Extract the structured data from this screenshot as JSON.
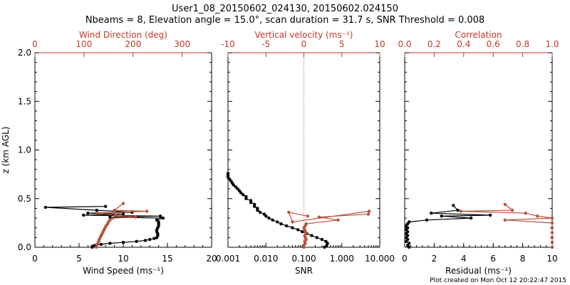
{
  "title_line1": "User1_08_20150602_024130, 20150602.024150",
  "title_line2": "Nbeams = 8, Elevation angle = 15.0°, scan duration = 31.7 s, SNR Threshold = 0.008",
  "footer": "Plot created on Mon Oct 12 20:22:47 2015",
  "colors": {
    "black": "#000000",
    "red": "#c0392b",
    "brown": "#b5533c"
  },
  "chart_data": [
    {
      "type": "scatter",
      "name": "panel-wind",
      "ylabel": "z (km AGL)",
      "ylim": [
        0,
        2
      ],
      "yticks": [
        "0.0",
        "0.5",
        "1.0",
        "1.5",
        "2.0"
      ],
      "xlabel": "Wind Speed (ms⁻¹)",
      "xlim": [
        0,
        20
      ],
      "xticks": [
        "0",
        "5",
        "10",
        "15",
        "20"
      ],
      "top_xlabel": "Wind Direction (deg)",
      "top_xlim": [
        0,
        360
      ],
      "top_xticks": [
        "0",
        "100",
        "200",
        "300"
      ],
      "series": [
        {
          "axis": "bottom",
          "color": "black",
          "points": [
            [
              6.5,
              0.0
            ],
            [
              6.5,
              0.01
            ],
            [
              6.8,
              0.02
            ],
            [
              7.5,
              0.03
            ],
            [
              8.5,
              0.04
            ],
            [
              10,
              0.05
            ],
            [
              11.5,
              0.06
            ],
            [
              12.5,
              0.07
            ],
            [
              13,
              0.08
            ],
            [
              13.5,
              0.09
            ],
            [
              13.8,
              0.1
            ],
            [
              13.9,
              0.12
            ],
            [
              13.9,
              0.14
            ],
            [
              13.8,
              0.16
            ],
            [
              13.8,
              0.18
            ],
            [
              13.9,
              0.2
            ],
            [
              14,
              0.22
            ],
            [
              14,
              0.24
            ],
            [
              14,
              0.26
            ],
            [
              13.8,
              0.28
            ],
            [
              14.5,
              0.3
            ],
            [
              8.5,
              0.31
            ],
            [
              14.2,
              0.32
            ],
            [
              5.5,
              0.33
            ],
            [
              10,
              0.34
            ],
            [
              6,
              0.35
            ],
            [
              11,
              0.36
            ],
            [
              7,
              0.38
            ],
            [
              1.2,
              0.41
            ],
            [
              8,
              0.42
            ]
          ]
        },
        {
          "axis": "top",
          "color": "brown",
          "points": [
            [
              125,
              0.0
            ],
            [
              126,
              0.02
            ],
            [
              128,
              0.04
            ],
            [
              130,
              0.06
            ],
            [
              131,
              0.08
            ],
            [
              133,
              0.1
            ],
            [
              135,
              0.12
            ],
            [
              137,
              0.14
            ],
            [
              139,
              0.16
            ],
            [
              141,
              0.18
            ],
            [
              143,
              0.2
            ],
            [
              145,
              0.22
            ],
            [
              148,
              0.24
            ],
            [
              150,
              0.26
            ],
            [
              153,
              0.28
            ],
            [
              158,
              0.3
            ],
            [
              205,
              0.31
            ],
            [
              165,
              0.33
            ],
            [
              128,
              0.35
            ],
            [
              228,
              0.37
            ],
            [
              162,
              0.38
            ],
            [
              180,
              0.45
            ]
          ]
        }
      ]
    },
    {
      "type": "scatter",
      "name": "panel-snr",
      "xlabel": "SNR",
      "xscale": "log",
      "xlim": [
        0.001,
        10
      ],
      "xticks": [
        "0.001",
        "0.010",
        "0.100",
        "1.000",
        "10.000"
      ],
      "top_xlabel": "Vertical velocity (ms⁻¹)",
      "top_xlim": [
        -10,
        10
      ],
      "top_xticks": [
        "-10",
        "-5",
        "0",
        "5",
        "10"
      ],
      "ylim": [
        0,
        2
      ],
      "zero_line": 0,
      "series": [
        {
          "axis": "bottom",
          "color": "black",
          "points": [
            [
              0.35,
              0.0
            ],
            [
              0.4,
              0.02
            ],
            [
              0.42,
              0.04
            ],
            [
              0.38,
              0.06
            ],
            [
              0.3,
              0.08
            ],
            [
              0.22,
              0.1
            ],
            [
              0.16,
              0.12
            ],
            [
              0.12,
              0.14
            ],
            [
              0.09,
              0.16
            ],
            [
              0.07,
              0.18
            ],
            [
              0.05,
              0.2
            ],
            [
              0.035,
              0.22
            ],
            [
              0.025,
              0.24
            ],
            [
              0.02,
              0.26
            ],
            [
              0.015,
              0.28
            ],
            [
              0.012,
              0.3
            ],
            [
              0.01,
              0.32
            ],
            [
              0.009,
              0.34
            ],
            [
              0.007,
              0.36
            ],
            [
              0.006,
              0.38
            ],
            [
              0.006,
              0.4
            ],
            [
              0.005,
              0.42
            ],
            [
              0.005,
              0.44
            ],
            [
              0.004,
              0.46
            ],
            [
              0.004,
              0.48
            ],
            [
              0.003,
              0.5
            ],
            [
              0.003,
              0.52
            ],
            [
              0.0025,
              0.54
            ],
            [
              0.0022,
              0.56
            ],
            [
              0.002,
              0.58
            ],
            [
              0.0018,
              0.6
            ],
            [
              0.0016,
              0.62
            ],
            [
              0.0014,
              0.64
            ],
            [
              0.0013,
              0.66
            ],
            [
              0.0012,
              0.68
            ],
            [
              0.0011,
              0.7
            ],
            [
              0.001,
              0.72
            ],
            [
              0.001,
              0.74
            ],
            [
              0.001,
              0.76
            ]
          ]
        },
        {
          "axis": "top",
          "color": "brown",
          "points": [
            [
              0,
              0.0
            ],
            [
              0,
              0.02
            ],
            [
              0.2,
              0.04
            ],
            [
              0.1,
              0.06
            ],
            [
              0.3,
              0.08
            ],
            [
              0.2,
              0.1
            ],
            [
              0.1,
              0.12
            ],
            [
              0.3,
              0.14
            ],
            [
              0.2,
              0.16
            ],
            [
              0.1,
              0.18
            ],
            [
              0,
              0.2
            ],
            [
              0.2,
              0.22
            ],
            [
              0.3,
              0.24
            ],
            [
              4.5,
              0.28
            ],
            [
              2,
              0.31
            ],
            [
              8.5,
              0.34
            ],
            [
              8.6,
              0.37
            ],
            [
              -1.5,
              0.26
            ],
            [
              -2,
              0.36
            ],
            [
              0.5,
              0.32
            ]
          ]
        }
      ]
    },
    {
      "type": "scatter",
      "name": "panel-residual",
      "xlabel": "Residual (ms⁻¹)",
      "xlim": [
        0,
        10
      ],
      "xticks": [
        "0",
        "2",
        "4",
        "6",
        "8",
        "10"
      ],
      "top_xlabel": "Correlation",
      "top_xlim": [
        0,
        1
      ],
      "top_xticks": [
        "0.0",
        "0.2",
        "0.4",
        "0.6",
        "0.8",
        "1.0"
      ],
      "ylim": [
        0,
        2
      ],
      "series": [
        {
          "axis": "bottom",
          "color": "black",
          "points": [
            [
              0.3,
              0.0
            ],
            [
              0.2,
              0.02
            ],
            [
              0.3,
              0.04
            ],
            [
              0.1,
              0.06
            ],
            [
              0.2,
              0.08
            ],
            [
              0.1,
              0.1
            ],
            [
              0.2,
              0.12
            ],
            [
              0.1,
              0.14
            ],
            [
              0.2,
              0.16
            ],
            [
              0.1,
              0.18
            ],
            [
              0.2,
              0.2
            ],
            [
              0.1,
              0.22
            ],
            [
              0.2,
              0.24
            ],
            [
              0.3,
              0.26
            ],
            [
              1.5,
              0.28
            ],
            [
              4.5,
              0.3
            ],
            [
              2.5,
              0.32
            ],
            [
              5.8,
              0.33
            ],
            [
              1.8,
              0.35
            ],
            [
              3.6,
              0.38
            ],
            [
              3.3,
              0.43
            ]
          ]
        },
        {
          "axis": "top",
          "color": "brown",
          "points": [
            [
              1.0,
              0.0
            ],
            [
              1.0,
              0.05
            ],
            [
              1.0,
              0.1
            ],
            [
              1.0,
              0.15
            ],
            [
              1.0,
              0.2
            ],
            [
              1.0,
              0.25
            ],
            [
              0.68,
              0.28
            ],
            [
              1.0,
              0.3
            ],
            [
              0.9,
              0.32
            ],
            [
              0.82,
              0.35
            ],
            [
              0.38,
              0.37
            ],
            [
              0.73,
              0.38
            ],
            [
              0.68,
              0.44
            ]
          ]
        }
      ]
    }
  ]
}
